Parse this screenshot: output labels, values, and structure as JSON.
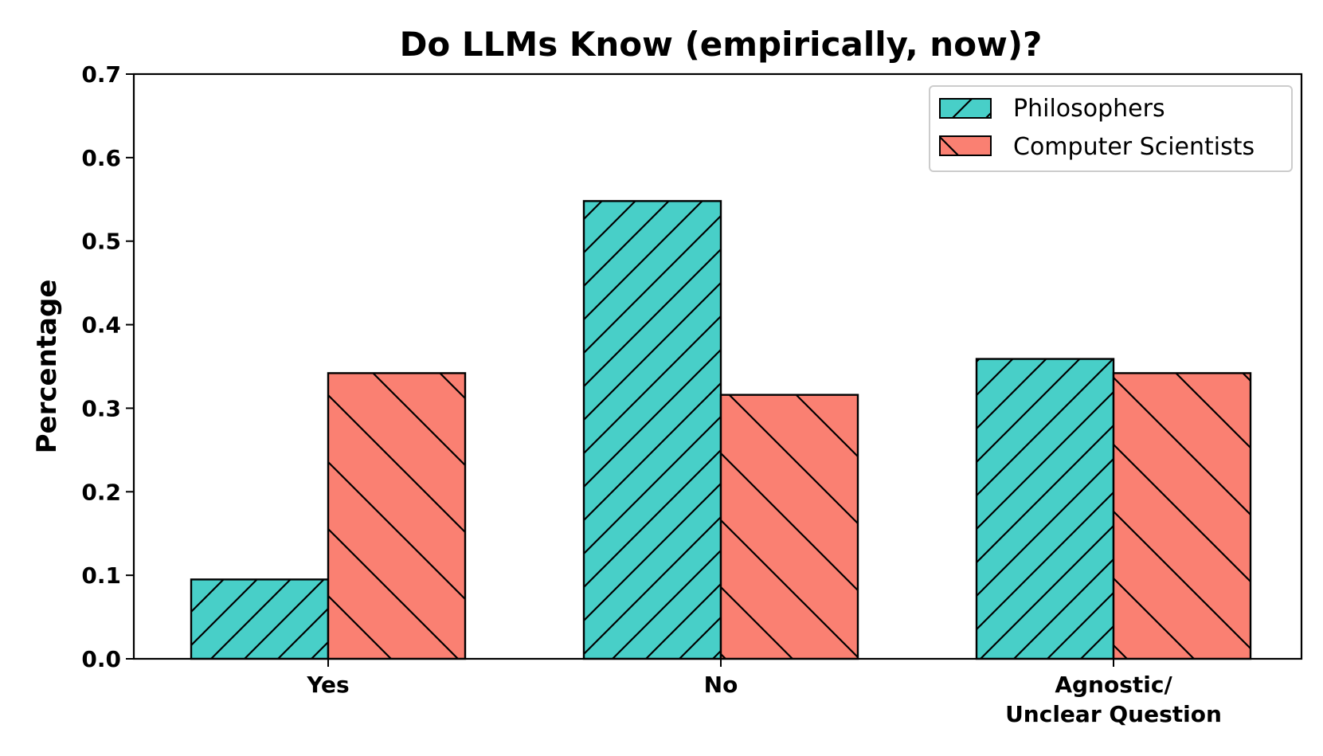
{
  "chart_data": {
    "type": "bar",
    "title": "Do LLMs Know (empirically, now)?",
    "xlabel": "",
    "ylabel": "Percentage",
    "ylim": [
      0,
      0.7
    ],
    "yticks": [
      "0.0",
      "0.1",
      "0.2",
      "0.3",
      "0.4",
      "0.5",
      "0.6",
      "0.7"
    ],
    "categories": [
      [
        "Yes"
      ],
      [
        "No"
      ],
      [
        "Agnostic/",
        "Unclear Question"
      ]
    ],
    "series": [
      {
        "name": "Philosophers",
        "values": [
          0.095,
          0.548,
          0.359
        ],
        "color": "#48cfc8",
        "hatch": "forward-diagonal"
      },
      {
        "name": "Computer Scientists",
        "values": [
          0.342,
          0.316,
          0.342
        ],
        "color": "#fa8072",
        "hatch": "back-diagonal"
      }
    ],
    "legend": {
      "position": "top-right"
    },
    "grid": false
  }
}
